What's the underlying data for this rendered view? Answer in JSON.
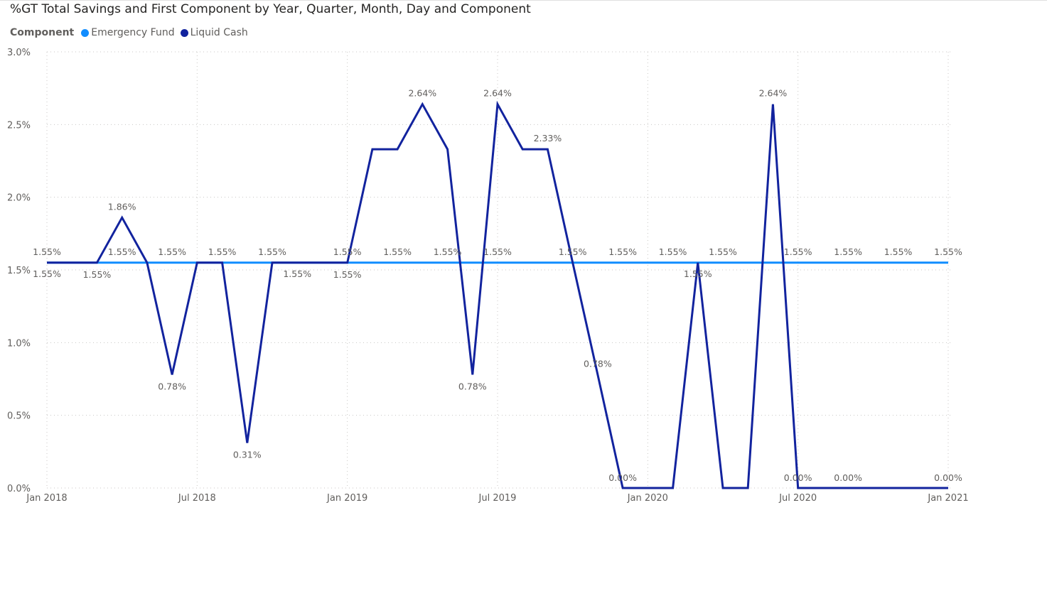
{
  "title": "%GT Total Savings and First Component by Year, Quarter, Month, Day and Component",
  "legend": {
    "title": "Component",
    "items": [
      {
        "name": "Emergency Fund",
        "color": "#118DFF"
      },
      {
        "name": "Liquid Cash",
        "color": "#12239E"
      }
    ]
  },
  "chart_data": {
    "type": "line",
    "x": [
      "2018-01-01",
      "2018-02-01",
      "2018-03-01",
      "2018-04-01",
      "2018-05-01",
      "2018-06-01",
      "2018-07-01",
      "2018-08-01",
      "2018-09-01",
      "2018-10-01",
      "2018-11-01",
      "2018-12-01",
      "2019-01-01",
      "2019-02-01",
      "2019-03-01",
      "2019-04-01",
      "2019-05-01",
      "2019-06-01",
      "2019-07-01",
      "2019-08-01",
      "2019-09-01",
      "2019-10-01",
      "2019-11-01",
      "2019-12-01",
      "2020-01-01",
      "2020-02-01",
      "2020-03-01",
      "2020-04-01",
      "2020-05-01",
      "2020-06-01",
      "2020-07-01",
      "2020-08-01",
      "2020-09-01",
      "2020-10-01",
      "2020-11-01",
      "2020-12-01",
      "2021-01-01"
    ],
    "xticks": [
      "Jan 2018",
      "Jul 2018",
      "Jan 2019",
      "Jul 2019",
      "Jan 2020",
      "Jul 2020",
      "Jan 2021"
    ],
    "ylim": [
      0,
      3.0
    ],
    "yticks": [
      "0.0%",
      "0.5%",
      "1.0%",
      "1.5%",
      "2.0%",
      "2.5%",
      "3.0%"
    ],
    "grid": true,
    "legend_position": "top-left",
    "series": [
      {
        "name": "Emergency Fund",
        "color": "#118DFF",
        "values": [
          1.55,
          1.55,
          1.55,
          1.55,
          1.55,
          1.55,
          1.55,
          1.55,
          1.55,
          1.55,
          1.55,
          1.55,
          1.55,
          1.55,
          1.55,
          1.55,
          1.55,
          1.55,
          1.55,
          1.55,
          1.55,
          1.55,
          1.55,
          1.55,
          1.55,
          1.55,
          1.55,
          1.55,
          1.55,
          1.55,
          1.55,
          1.55,
          1.55,
          1.55,
          1.55,
          1.55,
          1.55
        ]
      },
      {
        "name": "Liquid Cash",
        "color": "#12239E",
        "values": [
          1.55,
          1.55,
          1.55,
          1.86,
          1.55,
          0.78,
          1.55,
          1.55,
          0.31,
          1.55,
          1.55,
          1.55,
          1.55,
          2.33,
          2.33,
          2.64,
          2.33,
          0.78,
          2.64,
          2.33,
          2.33,
          1.55,
          0.78,
          0.0,
          0.0,
          0.0,
          1.55,
          0.0,
          0.0,
          2.64,
          0.0,
          0.0,
          0.0,
          0.0,
          0.0,
          0.0,
          0.0
        ]
      }
    ],
    "data_labels": [
      {
        "series": 1,
        "x": "2018-01-01",
        "text": "1.55%"
      },
      {
        "series": 1,
        "x": "2018-03-01",
        "text": "1.55%"
      },
      {
        "series": 1,
        "x": "2018-04-01",
        "text": "1.86%"
      },
      {
        "series": 1,
        "x": "2018-06-01",
        "text": "0.78%"
      },
      {
        "series": 1,
        "x": "2018-09-01",
        "text": "0.31%"
      },
      {
        "series": 1,
        "x": "2018-11-01",
        "text": "1.55%"
      },
      {
        "series": 1,
        "x": "2019-01-01",
        "text": "1.55%"
      },
      {
        "series": 1,
        "x": "2019-04-01",
        "text": "2.64%"
      },
      {
        "series": 1,
        "x": "2019-06-01",
        "text": "0.78%"
      },
      {
        "series": 1,
        "x": "2019-07-01",
        "text": "2.64%"
      },
      {
        "series": 1,
        "x": "2019-09-01",
        "text": "2.33%"
      },
      {
        "series": 1,
        "x": "2019-11-01",
        "text": "0.78%"
      },
      {
        "series": 1,
        "x": "2019-12-01",
        "text": "0.00%"
      },
      {
        "series": 1,
        "x": "2020-03-01",
        "text": "1.55%"
      },
      {
        "series": 1,
        "x": "2020-06-01",
        "text": "2.64%"
      },
      {
        "series": 1,
        "x": "2020-07-01",
        "text": "0.00%"
      },
      {
        "series": 1,
        "x": "2020-09-01",
        "text": "0.00%"
      },
      {
        "series": 1,
        "x": "2021-01-01",
        "text": "0.00%"
      },
      {
        "series": 0,
        "x": "2018-01-01",
        "text": "1.55%"
      },
      {
        "series": 0,
        "x": "2018-04-01",
        "text": "1.55%"
      },
      {
        "series": 0,
        "x": "2018-06-01",
        "text": "1.55%"
      },
      {
        "series": 0,
        "x": "2018-08-01",
        "text": "1.55%"
      },
      {
        "series": 0,
        "x": "2018-10-01",
        "text": "1.55%"
      },
      {
        "series": 0,
        "x": "2019-01-01",
        "text": "1.55%"
      },
      {
        "series": 0,
        "x": "2019-03-01",
        "text": "1.55%"
      },
      {
        "series": 0,
        "x": "2019-05-01",
        "text": "1.55%"
      },
      {
        "series": 0,
        "x": "2019-07-01",
        "text": "1.55%"
      },
      {
        "series": 0,
        "x": "2019-10-01",
        "text": "1.55%"
      },
      {
        "series": 0,
        "x": "2019-12-01",
        "text": "1.55%"
      },
      {
        "series": 0,
        "x": "2020-02-01",
        "text": "1.55%"
      },
      {
        "series": 0,
        "x": "2020-04-01",
        "text": "1.55%"
      },
      {
        "series": 0,
        "x": "2020-07-01",
        "text": "1.55%"
      },
      {
        "series": 0,
        "x": "2020-09-01",
        "text": "1.55%"
      },
      {
        "series": 0,
        "x": "2020-11-01",
        "text": "1.55%"
      },
      {
        "series": 0,
        "x": "2021-01-01",
        "text": "1.55%"
      }
    ]
  }
}
